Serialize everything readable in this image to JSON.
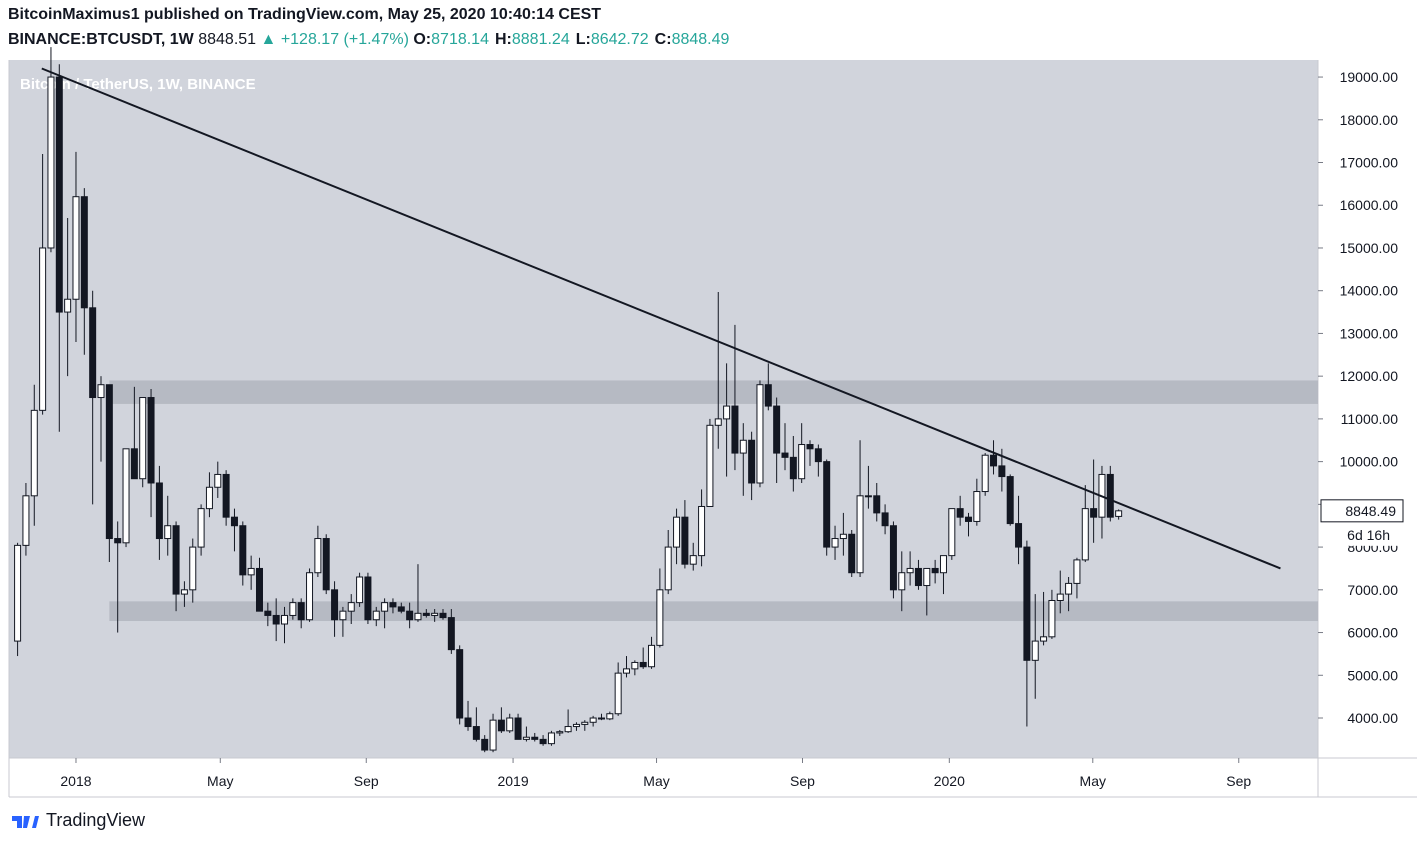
{
  "header": {
    "line1": "BitcoinMaximus1 published on TradingView.com, May 25, 2020 10:40:14 CEST",
    "symbol": "BINANCE:BTCUSDT, 1W",
    "last": "8848.51",
    "change": "▲ +128.17 (+1.47%)",
    "ohlc": [
      {
        "label": "O:",
        "value": "8718.14"
      },
      {
        "label": "H:",
        "value": "8881.24"
      },
      {
        "label": "L:",
        "value": "8642.72"
      },
      {
        "label": "C:",
        "value": "8848.49"
      }
    ]
  },
  "footer": {
    "brand": "TradingView"
  },
  "chart_data": {
    "type": "candlestick",
    "watermark": "Bitcoin / TetherUS, 1W, BINANCE",
    "up_color": "#ffffff",
    "down_color": "#131722",
    "countdown": "6d 16h",
    "xlim": [
      -1.03,
      155.9
    ],
    "xticks": [
      {
        "value": 7,
        "label": "2018"
      },
      {
        "value": 24.3,
        "label": "May"
      },
      {
        "value": 41.8,
        "label": "Sep"
      },
      {
        "value": 59.4,
        "label": "2019"
      },
      {
        "value": 76.6,
        "label": "May"
      },
      {
        "value": 94.1,
        "label": "Sep"
      },
      {
        "value": 111.7,
        "label": "2020"
      },
      {
        "value": 128.9,
        "label": "May"
      },
      {
        "value": 146.4,
        "label": "Sep"
      }
    ],
    "ylim": [
      3064,
      19399
    ],
    "yticks": [
      {
        "value": 4000,
        "label": "4000.00"
      },
      {
        "value": 5000,
        "label": "5000.00"
      },
      {
        "value": 6000,
        "label": "6000.00"
      },
      {
        "value": 7000,
        "label": "7000.00"
      },
      {
        "value": 8000,
        "label": "8000.00"
      },
      {
        "value": 9000,
        "label": "9000.00"
      },
      {
        "value": 10000,
        "label": "10000.00"
      },
      {
        "value": 11000,
        "label": "11000.00"
      },
      {
        "value": 12000,
        "label": "12000.00"
      },
      {
        "value": 13000,
        "label": "13000.00"
      },
      {
        "value": 14000,
        "label": "14000.00"
      },
      {
        "value": 15000,
        "label": "15000.00"
      },
      {
        "value": 16000,
        "label": "16000.00"
      },
      {
        "value": 17000,
        "label": "17000.00"
      },
      {
        "value": 18000,
        "label": "18000.00"
      },
      {
        "value": 19000,
        "label": "19000.00"
      }
    ],
    "trendline": {
      "x": [
        2.9,
        151.4
      ],
      "y": [
        19200,
        7500
      ]
    },
    "zones": [
      {
        "x_start": 11,
        "y": [
          11350,
          11900
        ]
      },
      {
        "x_start": 11,
        "y": [
          6270,
          6730
        ]
      }
    ],
    "candles": [
      [
        5800,
        8100,
        5450,
        8040
      ],
      [
        8040,
        9500,
        7800,
        9200
      ],
      [
        9200,
        11800,
        8500,
        11200
      ],
      [
        11200,
        17200,
        11100,
        15000
      ],
      [
        15000,
        19700,
        14900,
        19000
      ],
      [
        19000,
        19300,
        10700,
        13500
      ],
      [
        13500,
        15700,
        12000,
        13800
      ],
      [
        13800,
        17250,
        12800,
        16200
      ],
      [
        16200,
        16400,
        12500,
        13600
      ],
      [
        13600,
        14000,
        9000,
        11500
      ],
      [
        11500,
        12000,
        10000,
        11800
      ],
      [
        11800,
        11800,
        7650,
        8200
      ],
      [
        8200,
        8600,
        6000,
        8100
      ],
      [
        8100,
        10300,
        8000,
        10300
      ],
      [
        10300,
        11750,
        9600,
        9600
      ],
      [
        9600,
        11500,
        9400,
        11500
      ],
      [
        11500,
        11700,
        8700,
        9500
      ],
      [
        9500,
        9900,
        7700,
        8200
      ],
      [
        8200,
        9200,
        7800,
        8500
      ],
      [
        8500,
        8600,
        6500,
        6900
      ],
      [
        6900,
        7200,
        6600,
        7000
      ],
      [
        7000,
        8200,
        6700,
        8000
      ],
      [
        8000,
        9000,
        7800,
        8900
      ],
      [
        8900,
        9750,
        8700,
        9400
      ],
      [
        9400,
        10000,
        9150,
        9700
      ],
      [
        9700,
        9800,
        8500,
        8700
      ],
      [
        8700,
        8900,
        7900,
        8500
      ],
      [
        8500,
        8600,
        7100,
        7350
      ],
      [
        7350,
        7800,
        7000,
        7500
      ],
      [
        7500,
        7750,
        6500,
        6500
      ],
      [
        6500,
        6700,
        6150,
        6400
      ],
      [
        6400,
        6800,
        5800,
        6200
      ],
      [
        6200,
        6600,
        5750,
        6400
      ],
      [
        6400,
        6800,
        6300,
        6700
      ],
      [
        6700,
        6800,
        6100,
        6300
      ],
      [
        6300,
        7500,
        6250,
        7400
      ],
      [
        7400,
        8500,
        7300,
        8200
      ],
      [
        8200,
        8300,
        6900,
        7000
      ],
      [
        7000,
        7200,
        5900,
        6300
      ],
      [
        6300,
        6600,
        5900,
        6500
      ],
      [
        6500,
        6900,
        6200,
        6700
      ],
      [
        6700,
        7400,
        6600,
        7300
      ],
      [
        7300,
        7400,
        6200,
        6300
      ],
      [
        6300,
        6600,
        6150,
        6500
      ],
      [
        6500,
        6800,
        6100,
        6700
      ],
      [
        6700,
        6800,
        6450,
        6600
      ],
      [
        6600,
        6700,
        6450,
        6500
      ],
      [
        6500,
        6700,
        6100,
        6300
      ],
      [
        6300,
        7600,
        6250,
        6450
      ],
      [
        6450,
        6550,
        6350,
        6400
      ],
      [
        6400,
        6550,
        6250,
        6450
      ],
      [
        6450,
        6550,
        6300,
        6350
      ],
      [
        6350,
        6550,
        5500,
        5600
      ],
      [
        5600,
        5700,
        3850,
        4000
      ],
      [
        4000,
        4400,
        3700,
        3800
      ],
      [
        3800,
        4250,
        3450,
        3500
      ],
      [
        3500,
        3600,
        3200,
        3250
      ],
      [
        3250,
        4100,
        3200,
        3950
      ],
      [
        3950,
        4250,
        3650,
        3700
      ],
      [
        3700,
        4100,
        3650,
        4000
      ],
      [
        4000,
        4100,
        3500,
        3500
      ],
      [
        3500,
        3800,
        3450,
        3550
      ],
      [
        3550,
        3650,
        3450,
        3500
      ],
      [
        3500,
        3600,
        3350,
        3400
      ],
      [
        3400,
        3700,
        3350,
        3650
      ],
      [
        3650,
        3720,
        3580,
        3680
      ],
      [
        3680,
        4200,
        3650,
        3800
      ],
      [
        3800,
        3900,
        3700,
        3850
      ],
      [
        3850,
        3950,
        3700,
        3900
      ],
      [
        3900,
        4050,
        3800,
        4000
      ],
      [
        4000,
        4100,
        3950,
        3980
      ],
      [
        3980,
        4150,
        3950,
        4100
      ],
      [
        4100,
        5300,
        4050,
        5050
      ],
      [
        5050,
        5450,
        4950,
        5150
      ],
      [
        5150,
        5350,
        5000,
        5300
      ],
      [
        5300,
        5650,
        5150,
        5200
      ],
      [
        5200,
        5900,
        5150,
        5700
      ],
      [
        5700,
        7500,
        5650,
        7000
      ],
      [
        7000,
        8400,
        6900,
        8000
      ],
      [
        8000,
        8900,
        7600,
        8700
      ],
      [
        8700,
        9100,
        7500,
        7600
      ],
      [
        7600,
        8100,
        7450,
        7800
      ],
      [
        7800,
        9350,
        7550,
        8950
      ],
      [
        8950,
        11000,
        8950,
        10850
      ],
      [
        10850,
        13970,
        10300,
        11000
      ],
      [
        11000,
        12300,
        9650,
        11300
      ],
      [
        11300,
        13200,
        9800,
        10200
      ],
      [
        10200,
        10900,
        9200,
        10500
      ],
      [
        10500,
        10700,
        9100,
        9500
      ],
      [
        9500,
        11900,
        9400,
        11800
      ],
      [
        11800,
        12300,
        11200,
        11300
      ],
      [
        11300,
        11500,
        9500,
        10200
      ],
      [
        10200,
        10900,
        9800,
        10100
      ],
      [
        10100,
        10600,
        9300,
        9600
      ],
      [
        9600,
        10900,
        9500,
        10400
      ],
      [
        10400,
        10500,
        9900,
        10300
      ],
      [
        10300,
        10400,
        9650,
        10000
      ],
      [
        10000,
        10050,
        7800,
        8000
      ],
      [
        8000,
        8500,
        7700,
        8200
      ],
      [
        8200,
        8800,
        7800,
        8300
      ],
      [
        8300,
        8400,
        7300,
        7400
      ],
      [
        7400,
        10500,
        7300,
        9200
      ],
      [
        9200,
        9900,
        8900,
        9200
      ],
      [
        9200,
        9500,
        8600,
        8800
      ],
      [
        8800,
        9000,
        8300,
        8500
      ],
      [
        8500,
        8600,
        6800,
        7000
      ],
      [
        7000,
        7900,
        6500,
        7400
      ],
      [
        7400,
        7900,
        7100,
        7500
      ],
      [
        7500,
        7700,
        7000,
        7100
      ],
      [
        7100,
        7500,
        6400,
        7500
      ],
      [
        7500,
        7700,
        7150,
        7400
      ],
      [
        7400,
        7800,
        6900,
        7800
      ],
      [
        7800,
        8900,
        7700,
        8900
      ],
      [
        8900,
        9200,
        8500,
        8700
      ],
      [
        8700,
        8800,
        8250,
        8600
      ],
      [
        8600,
        9600,
        8500,
        9300
      ],
      [
        9300,
        10200,
        9200,
        10150
      ],
      [
        10150,
        10500,
        9700,
        9900
      ],
      [
        9900,
        10300,
        9300,
        9650
      ],
      [
        9650,
        9700,
        8500,
        8550
      ],
      [
        8550,
        9200,
        7600,
        8000
      ],
      [
        8000,
        8150,
        3800,
        5350
      ],
      [
        5350,
        6900,
        4450,
        5800
      ],
      [
        5800,
        6950,
        5700,
        5900
      ],
      [
        5900,
        7000,
        5850,
        6750
      ],
      [
        6750,
        7450,
        6450,
        6900
      ],
      [
        6900,
        7300,
        6500,
        7150
      ],
      [
        7150,
        7750,
        6800,
        7700
      ],
      [
        7700,
        9450,
        7650,
        8900
      ],
      [
        8900,
        10050,
        8100,
        8700
      ],
      [
        8700,
        9900,
        8200,
        9700
      ],
      [
        9700,
        9900,
        8600,
        8700
      ],
      [
        8718.14,
        8881.24,
        8642.72,
        8848.49
      ]
    ]
  }
}
